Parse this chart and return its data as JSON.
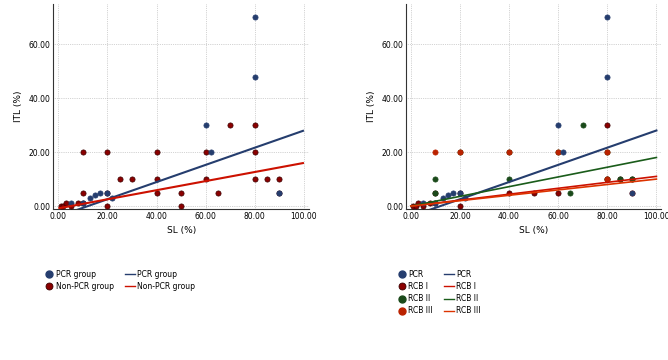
{
  "left_pcr_x": [
    5,
    10,
    13,
    15,
    17,
    20,
    22,
    60,
    62,
    80,
    80,
    90
  ],
  "left_pcr_y": [
    1,
    1,
    3,
    4,
    5,
    5,
    3,
    30,
    20,
    48,
    70,
    5
  ],
  "left_nonpcr_x": [
    1,
    2,
    3,
    5,
    8,
    10,
    10,
    10,
    20,
    20,
    20,
    25,
    30,
    40,
    40,
    40,
    50,
    50,
    60,
    60,
    65,
    70,
    80,
    80,
    80,
    85,
    90,
    90
  ],
  "left_nonpcr_y": [
    0,
    0,
    1,
    0,
    1,
    1,
    5,
    20,
    0,
    5,
    20,
    10,
    10,
    5,
    10,
    20,
    5,
    0,
    10,
    20,
    5,
    30,
    20,
    30,
    10,
    10,
    10,
    5
  ],
  "right_pcr_x": [
    5,
    10,
    13,
    15,
    17,
    20,
    22,
    60,
    62,
    80,
    80,
    90
  ],
  "right_pcr_y": [
    1,
    1,
    3,
    4,
    5,
    5,
    3,
    30,
    20,
    48,
    70,
    5
  ],
  "right_rcb1_x": [
    1,
    2,
    3,
    5,
    8,
    10,
    10,
    20,
    20,
    40,
    50,
    60,
    80,
    80,
    85,
    90
  ],
  "right_rcb1_y": [
    0,
    0,
    1,
    0,
    1,
    1,
    5,
    0,
    5,
    5,
    5,
    5,
    10,
    30,
    10,
    10
  ],
  "right_rcb2_x": [
    10,
    10,
    20,
    40,
    40,
    60,
    65,
    70,
    80,
    80,
    85,
    90
  ],
  "right_rcb2_y": [
    5,
    10,
    20,
    10,
    20,
    20,
    5,
    30,
    10,
    20,
    10,
    10
  ],
  "right_rcb3_x": [
    10,
    20,
    40,
    60,
    80,
    80,
    90
  ],
  "right_rcb3_y": [
    20,
    20,
    20,
    20,
    10,
    20,
    5
  ],
  "pcr_color": "#253d6e",
  "nonpcr_dot_color": "#8b0000",
  "nonpcr_dot_edge": "#3a0000",
  "nonpcr_line_color": "#cc1100",
  "rcb1_dot_color": "#8b0000",
  "rcb1_dot_edge": "#3a0000",
  "rcb1_line_color": "#cc1100",
  "rcb2_dot_color": "#1a4a1a",
  "rcb2_line_color": "#1a5c1a",
  "rcb3_dot_color": "#bb2200",
  "rcb3_line_color": "#dd3300",
  "bg_color": "#ffffff",
  "grid_color": "#aaaaaa",
  "xlim": [
    -2,
    102
  ],
  "ylim": [
    -1,
    75
  ],
  "xticks": [
    0.0,
    20.0,
    40.0,
    60.0,
    80.0,
    100.0
  ],
  "yticks": [
    0.0,
    20.0,
    40.0,
    60.0
  ],
  "xlabel": "SL (%)",
  "ylabel": "ITL (%)",
  "pcr_line_x0": 12,
  "pcr_line_y0": 0,
  "pcr_line_x1": 100,
  "pcr_line_y1": 28,
  "nonpcr_line_x0": 5,
  "nonpcr_line_y0": 0,
  "nonpcr_line_x1": 100,
  "nonpcr_line_y1": 16,
  "rcb1_line_x0": 0,
  "rcb1_line_y0": 0,
  "rcb1_line_x1": 100,
  "rcb1_line_y1": 11,
  "rcb2_line_x0": 0,
  "rcb2_line_y0": 0,
  "rcb2_line_x1": 100,
  "rcb2_line_y1": 18,
  "rcb3_line_x0": 0,
  "rcb3_line_y0": 0,
  "rcb3_line_x1": 100,
  "rcb3_line_y1": 10
}
